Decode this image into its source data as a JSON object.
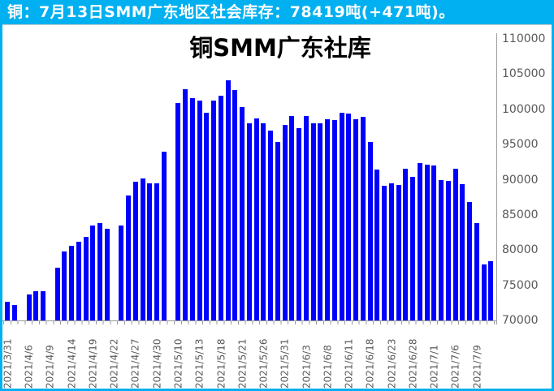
{
  "header": {
    "text": "铜：7月13日SMM广东地区社会库存：78419吨(+471吨)。"
  },
  "colors": {
    "accent_cyan": "#00B0F0",
    "bar_blue": "#0000FE",
    "axis_gray": "#9b9b9b",
    "label_gray": "#595959"
  },
  "chart_data": {
    "type": "bar",
    "title": "铜SMM广东社库",
    "xlabel": "",
    "ylabel": "",
    "ylim": [
      70000,
      110000
    ],
    "yticks": [
      70000,
      75000,
      80000,
      85000,
      90000,
      95000,
      100000,
      105000,
      110000
    ],
    "grid": "off",
    "legend": "none",
    "y_axis_side": "right",
    "x_label_every_n_slots": 3,
    "x_tick_labels": [
      "2021/3/31",
      "2021/4/6",
      "2021/4/9",
      "2021/4/14",
      "2021/4/19",
      "2021/4/22",
      "2021/4/27",
      "2021/4/30",
      "2021/5/10",
      "2021/5/13",
      "2021/5/18",
      "2021/5/21",
      "2021/5/26",
      "2021/5/31",
      "2021/6/3",
      "2021/6/8",
      "2021/6/11",
      "2021/6/18",
      "2021/6/23",
      "2021/6/28",
      "2021/7/1",
      "2021/7/6",
      "2021/7/9"
    ],
    "values": [
      72700,
      72200,
      null,
      73650,
      74150,
      74150,
      null,
      77500,
      79800,
      80600,
      81200,
      81850,
      83500,
      83800,
      83000,
      null,
      83500,
      87800,
      89700,
      90200,
      89500,
      89500,
      94000,
      null,
      100900,
      102900,
      101600,
      101240,
      99500,
      101200,
      101900,
      104100,
      102700,
      100280,
      97980,
      98710,
      97980,
      97020,
      95370,
      97790,
      99020,
      97360,
      99020,
      97980,
      98050,
      98630,
      98510,
      99510,
      99400,
      98630,
      98900,
      95370,
      91410,
      89100,
      89490,
      89290,
      91600,
      90440,
      92370,
      92180,
      91990,
      89980,
      89790,
      91600,
      89410,
      86800,
      83800,
      77948,
      78419
    ]
  }
}
